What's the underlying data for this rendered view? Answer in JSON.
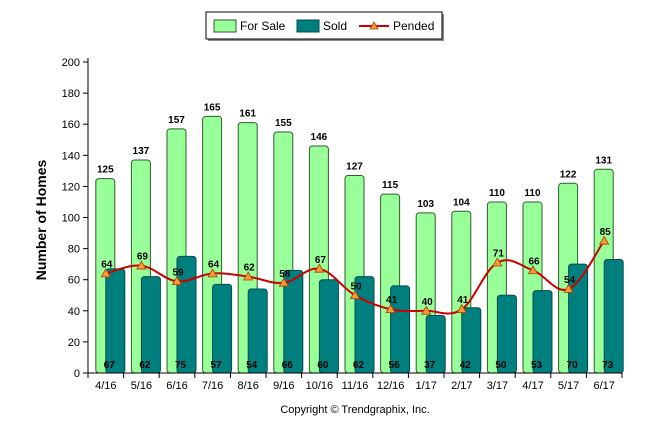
{
  "chart_data": {
    "type": "bar",
    "categories": [
      "4/16",
      "5/16",
      "6/16",
      "7/16",
      "8/16",
      "9/16",
      "10/16",
      "11/16",
      "12/16",
      "1/17",
      "2/17",
      "3/17",
      "4/17",
      "5/17",
      "6/17"
    ],
    "series": [
      {
        "name": "For Sale",
        "type": "bar",
        "color": "#99ff99",
        "values": [
          125,
          137,
          157,
          165,
          161,
          155,
          146,
          127,
          115,
          103,
          104,
          110,
          110,
          122,
          131
        ]
      },
      {
        "name": "Sold",
        "type": "bar",
        "color": "#007f7f",
        "values": [
          67,
          62,
          75,
          57,
          54,
          66,
          60,
          62,
          56,
          37,
          42,
          50,
          53,
          70,
          73
        ]
      },
      {
        "name": "Pended",
        "type": "line",
        "color": "#cc0000",
        "marker_color": "#ff9933",
        "values": [
          64,
          69,
          59,
          64,
          62,
          58,
          67,
          50,
          41,
          40,
          41,
          71,
          66,
          54,
          85
        ]
      }
    ],
    "ylabel": "Number of Homes",
    "xlabel": "",
    "ylim": [
      0,
      200
    ],
    "yticks": [
      0,
      20,
      40,
      60,
      80,
      100,
      120,
      140,
      160,
      180,
      200
    ],
    "legend_position": "top-center",
    "grid": false
  },
  "footer": {
    "copyright": "Copyright © Trendgraphix, Inc."
  }
}
